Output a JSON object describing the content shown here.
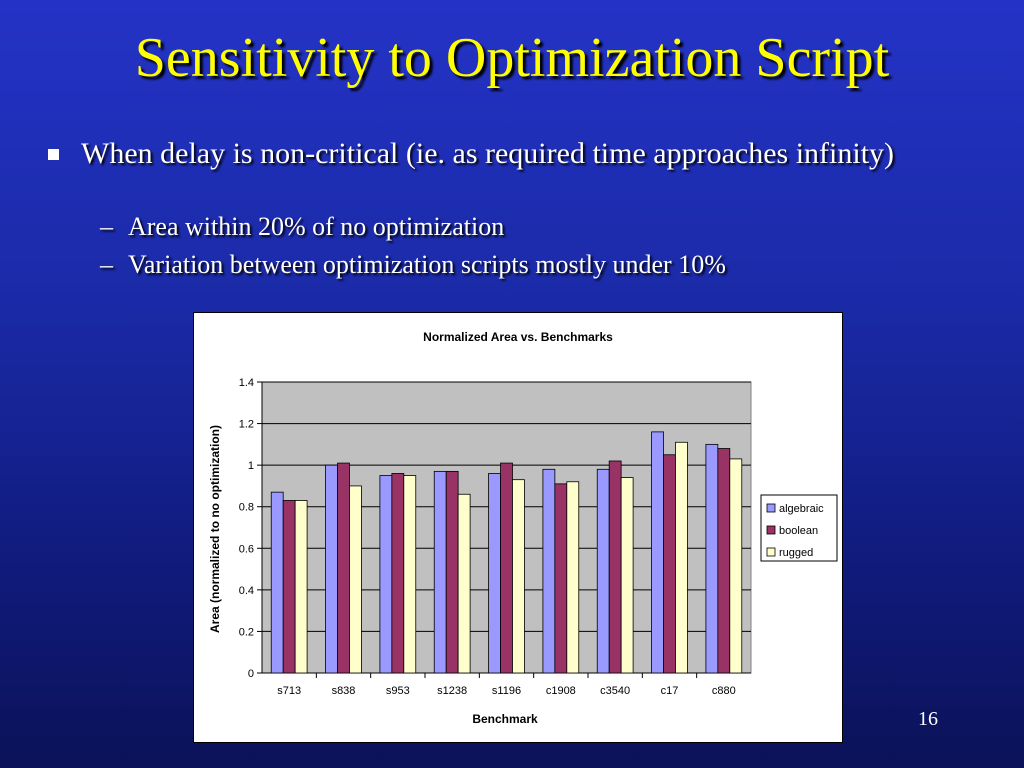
{
  "slide": {
    "title": "Sensitivity to Optimization Script",
    "bullet": "When delay is non-critical (ie. as required time approaches infinity)",
    "subbullets": [
      "Area within 20% of no optimization",
      "Variation between optimization scripts mostly under 10%"
    ],
    "dash": "–",
    "page_number": "16"
  },
  "chart_data": {
    "type": "bar",
    "title": "Normalized Area vs. Benchmarks",
    "xlabel": "Benchmark",
    "ylabel": "Area (normalized to no optimization)",
    "categories": [
      "s713",
      "s838",
      "s953",
      "s1238",
      "s1196",
      "c1908",
      "c3540",
      "c17",
      "c880"
    ],
    "series": [
      {
        "name": "algebraic",
        "color": "#9999ff",
        "values": [
          0.87,
          1.0,
          0.95,
          0.97,
          0.96,
          0.98,
          0.98,
          1.16,
          1.1
        ]
      },
      {
        "name": "boolean",
        "color": "#993366",
        "values": [
          0.83,
          1.01,
          0.96,
          0.97,
          1.01,
          0.91,
          1.02,
          1.05,
          1.08
        ]
      },
      {
        "name": "rugged",
        "color": "#ffffcc",
        "values": [
          0.83,
          0.9,
          0.95,
          0.86,
          0.93,
          0.92,
          0.94,
          1.11,
          1.03
        ]
      }
    ],
    "ylim": [
      0,
      1.4
    ],
    "yticks": [
      0,
      0.2,
      0.4,
      0.6,
      0.8,
      1.0,
      1.2,
      1.4
    ],
    "ytick_labels": [
      "0",
      "0.2",
      "0.4",
      "0.6",
      "0.8",
      "1",
      "1.2",
      "1.4"
    ],
    "grid": true,
    "plot_background": "#c0c0c0",
    "legend_position": "right"
  }
}
